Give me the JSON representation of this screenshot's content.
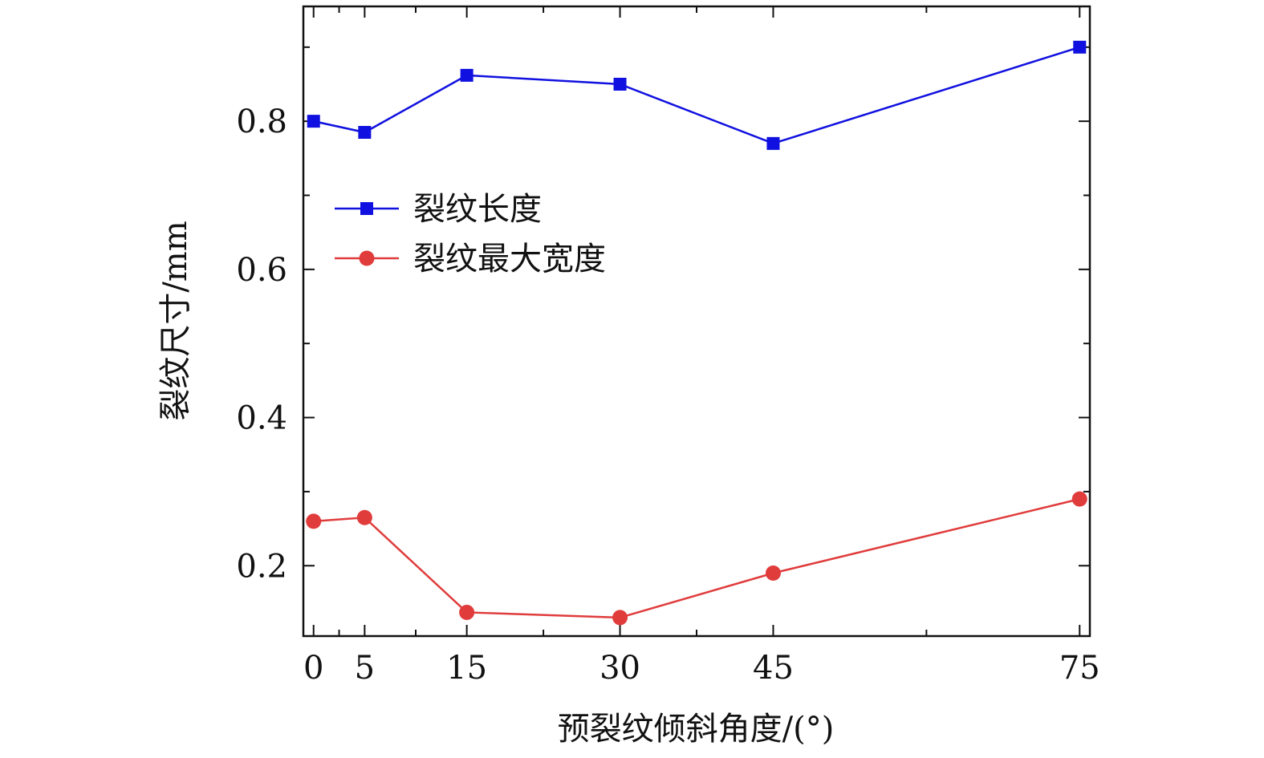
{
  "chart_data": {
    "type": "line",
    "title": "",
    "xlabel": "预裂纹倾斜角度/(°)",
    "ylabel": "裂纹尺寸/mm",
    "x": [
      0,
      5,
      15,
      30,
      45,
      75
    ],
    "x_tick_labels": [
      "0",
      "5",
      "15",
      "30",
      "45",
      "75"
    ],
    "x_minor_ticks": [
      2.5,
      10,
      22.5,
      37.5,
      60
    ],
    "xlim": [
      -1,
      76
    ],
    "y_ticks": [
      0.2,
      0.4,
      0.6,
      0.8
    ],
    "y_tick_labels": [
      "0.2",
      "0.4",
      "0.6",
      "0.8"
    ],
    "y_minor_ticks": [
      0.3,
      0.5,
      0.7,
      0.9
    ],
    "ylim": [
      0.105,
      0.955
    ],
    "grid": false,
    "legend_position": "upper-left",
    "series": [
      {
        "name": "裂纹长度",
        "marker": "square",
        "color": "#1010e0",
        "values": [
          0.8,
          0.785,
          0.862,
          0.85,
          0.77,
          0.9
        ]
      },
      {
        "name": "裂纹最大宽度",
        "marker": "circle",
        "color": "#e03c3c",
        "values": [
          0.26,
          0.265,
          0.137,
          0.13,
          0.19,
          0.29
        ]
      }
    ]
  }
}
